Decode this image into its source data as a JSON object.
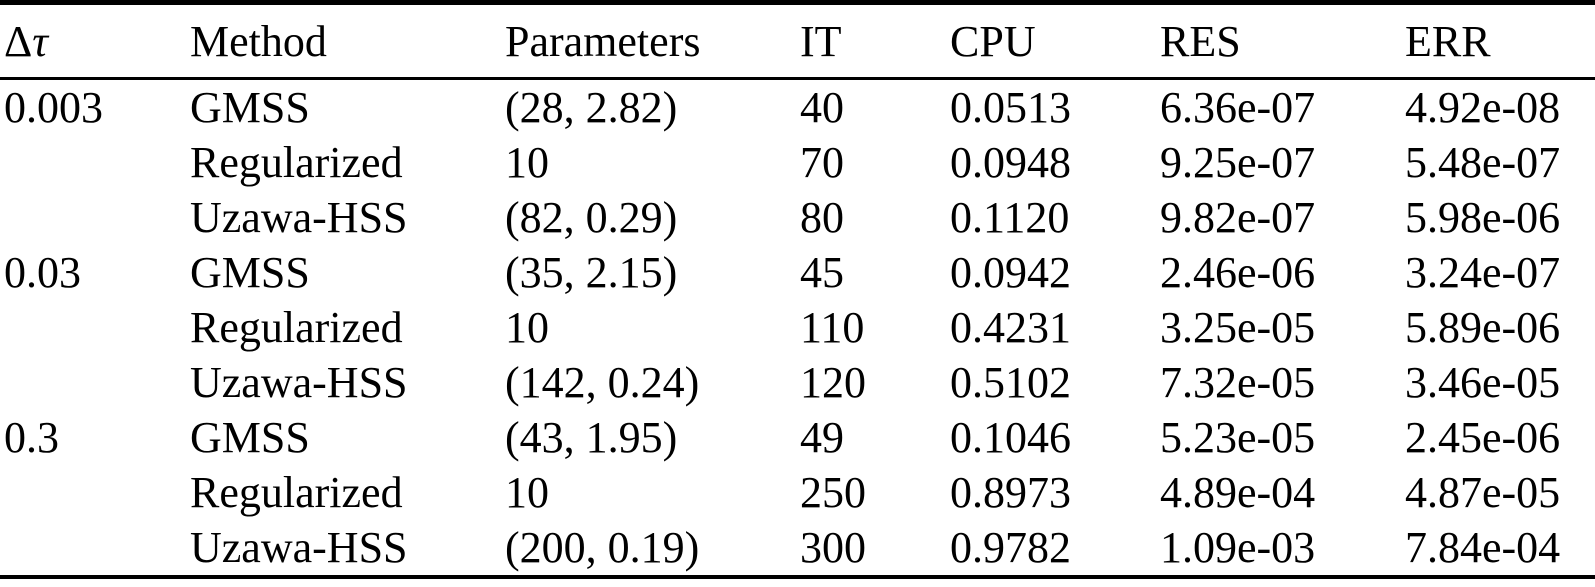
{
  "table": {
    "header": {
      "dtau_delta": "Δ",
      "dtau_tau": "τ",
      "method": "Method",
      "parameters": "Parameters",
      "it": "IT",
      "cpu": "CPU",
      "res": "RES",
      "err": "ERR"
    },
    "column_keys": [
      "dtau",
      "method",
      "parameters",
      "it",
      "cpu",
      "res",
      "err"
    ],
    "rows": [
      {
        "dtau": "0.003",
        "method": "GMSS",
        "parameters": "(28, 2.82)",
        "it": "40",
        "cpu": "0.0513",
        "res": "6.36e-07",
        "err": "4.92e-08"
      },
      {
        "dtau": "",
        "method": "Regularized",
        "parameters": "10",
        "it": "70",
        "cpu": "0.0948",
        "res": "9.25e-07",
        "err": "5.48e-07"
      },
      {
        "dtau": "",
        "method": "Uzawa-HSS",
        "parameters": "(82, 0.29)",
        "it": "80",
        "cpu": "0.1120",
        "res": "9.82e-07",
        "err": "5.98e-06"
      },
      {
        "dtau": "0.03",
        "method": "GMSS",
        "parameters": "(35, 2.15)",
        "it": "45",
        "cpu": "0.0942",
        "res": "2.46e-06",
        "err": "3.24e-07"
      },
      {
        "dtau": "",
        "method": "Regularized",
        "parameters": "10",
        "it": "110",
        "cpu": "0.4231",
        "res": "3.25e-05",
        "err": "5.89e-06"
      },
      {
        "dtau": "",
        "method": "Uzawa-HSS",
        "parameters": "(142, 0.24)",
        "it": "120",
        "cpu": "0.5102",
        "res": "7.32e-05",
        "err": "3.46e-05"
      },
      {
        "dtau": "0.3",
        "method": "GMSS",
        "parameters": "(43, 1.95)",
        "it": "49",
        "cpu": "0.1046",
        "res": "5.23e-05",
        "err": "2.45e-06"
      },
      {
        "dtau": "",
        "method": "Regularized",
        "parameters": "10",
        "it": "250",
        "cpu": "0.8973",
        "res": "4.89e-04",
        "err": "4.87e-05"
      },
      {
        "dtau": "",
        "method": "Uzawa-HSS",
        "parameters": "(200, 0.19)",
        "it": "300",
        "cpu": "0.9782",
        "res": "1.09e-03",
        "err": "7.84e-04"
      }
    ],
    "colors": {
      "text": "#000000",
      "background": "#ffffff",
      "rule": "#000000"
    }
  }
}
